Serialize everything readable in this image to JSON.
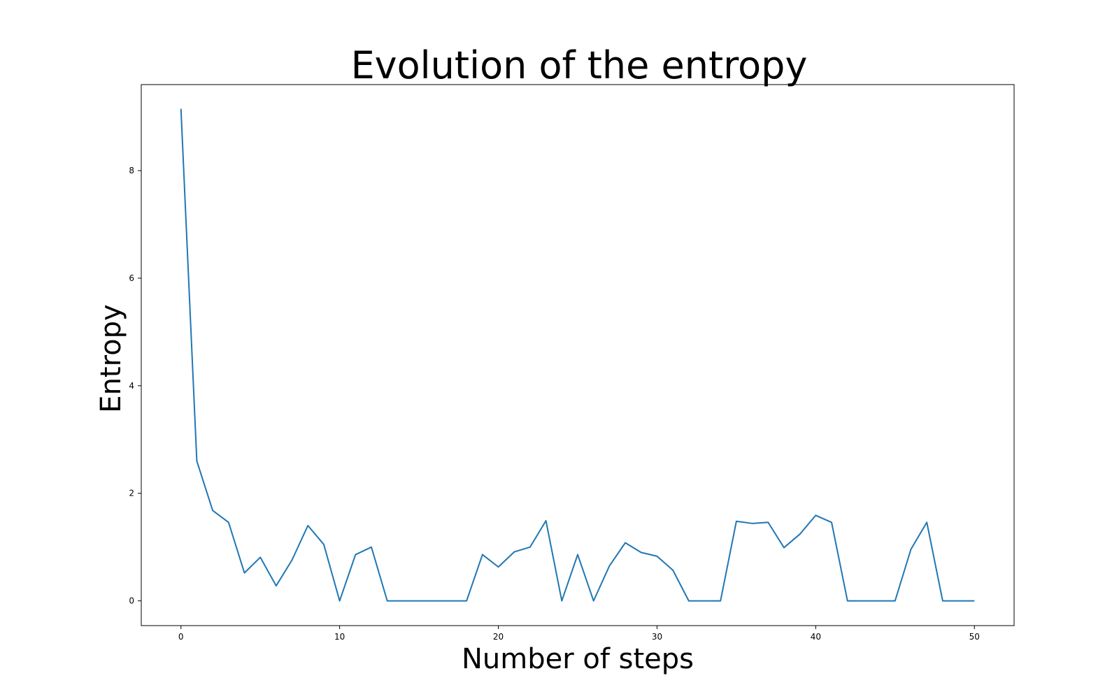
{
  "chart_data": {
    "type": "line",
    "title": "Evolution of the entropy",
    "xlabel": "Number of steps",
    "ylabel": "Entropy",
    "xlim": [
      -2.5,
      52.5
    ],
    "ylim": [
      -0.46,
      9.6
    ],
    "xticks": [
      0,
      10,
      20,
      30,
      40,
      50
    ],
    "xtick_labels": [
      "0",
      "10",
      "20",
      "30",
      "40",
      "50"
    ],
    "yticks": [
      0,
      2,
      4,
      6,
      8
    ],
    "ytick_labels": [
      "0",
      "2",
      "4",
      "6",
      "8"
    ],
    "grid": false,
    "legend": "none",
    "series": [
      {
        "color": "#1f77b4",
        "x": [
          0,
          1,
          2,
          3,
          4,
          5,
          6,
          7,
          8,
          9,
          10,
          11,
          12,
          13,
          14,
          15,
          16,
          17,
          18,
          19,
          20,
          21,
          22,
          23,
          24,
          25,
          26,
          27,
          28,
          29,
          30,
          31,
          32,
          33,
          34,
          35,
          36,
          37,
          38,
          39,
          40,
          41,
          42,
          43,
          44,
          45,
          46,
          47,
          48,
          49,
          50
        ],
        "y": [
          9.15,
          2.6,
          1.68,
          1.46,
          0.52,
          0.81,
          0.28,
          0.76,
          1.4,
          1.05,
          0,
          0.86,
          1.0,
          0,
          0,
          0,
          0,
          0,
          0,
          0.86,
          0.63,
          0.91,
          1.0,
          1.49,
          0,
          0.86,
          0,
          0.65,
          1.08,
          0.9,
          0.83,
          0.57,
          0,
          0,
          0,
          1.48,
          1.44,
          1.46,
          0.99,
          1.24,
          1.59,
          1.46,
          0,
          0,
          0,
          0,
          0.96,
          1.46,
          0,
          0,
          0
        ]
      }
    ]
  }
}
